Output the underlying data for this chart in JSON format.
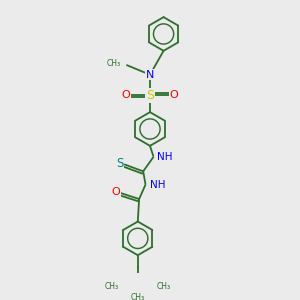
{
  "background_color": "#ebebeb",
  "bond_color": "#2d6e2d",
  "atom_colors": {
    "N": "#0000ff",
    "O": "#ff0000",
    "S_sulfonyl": "#cccc00",
    "S_thio": "#008080",
    "C": "#2d6e2d"
  },
  "figsize": [
    3.0,
    3.0
  ],
  "dpi": 100,
  "xlim": [
    0,
    10
  ],
  "ylim": [
    0,
    10
  ]
}
